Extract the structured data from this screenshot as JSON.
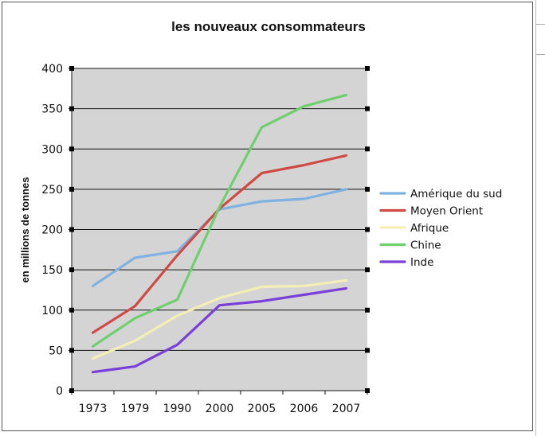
{
  "chart_data": {
    "type": "line",
    "title": "les nouveaux consommateurs",
    "xlabel": "",
    "ylabel": "en millions de tonnes",
    "categories": [
      "1973",
      "1979",
      "1990",
      "2000",
      "2005",
      "2006",
      "2007"
    ],
    "ylim": [
      0,
      400
    ],
    "yticks": [
      0,
      50,
      100,
      150,
      200,
      250,
      300,
      350,
      400
    ],
    "grid": true,
    "plot_background": "#d4d4d4",
    "legend_position": "right",
    "series": [
      {
        "name": "Amérique du sud",
        "color": "#7fb2e0",
        "values": [
          130,
          165,
          173,
          225,
          235,
          238,
          250
        ]
      },
      {
        "name": "Moyen Orient",
        "color": "#cf4a44",
        "values": [
          72,
          105,
          168,
          226,
          270,
          280,
          292
        ]
      },
      {
        "name": "Afrique",
        "color": "#f3efb5",
        "values": [
          40,
          62,
          93,
          115,
          129,
          130,
          137
        ]
      },
      {
        "name": "Chine",
        "color": "#6fcf6f",
        "values": [
          55,
          90,
          113,
          228,
          327,
          353,
          367
        ]
      },
      {
        "name": "Inde",
        "color": "#7a3fd8",
        "values": [
          23,
          30,
          57,
          106,
          111,
          119,
          127
        ]
      }
    ]
  }
}
